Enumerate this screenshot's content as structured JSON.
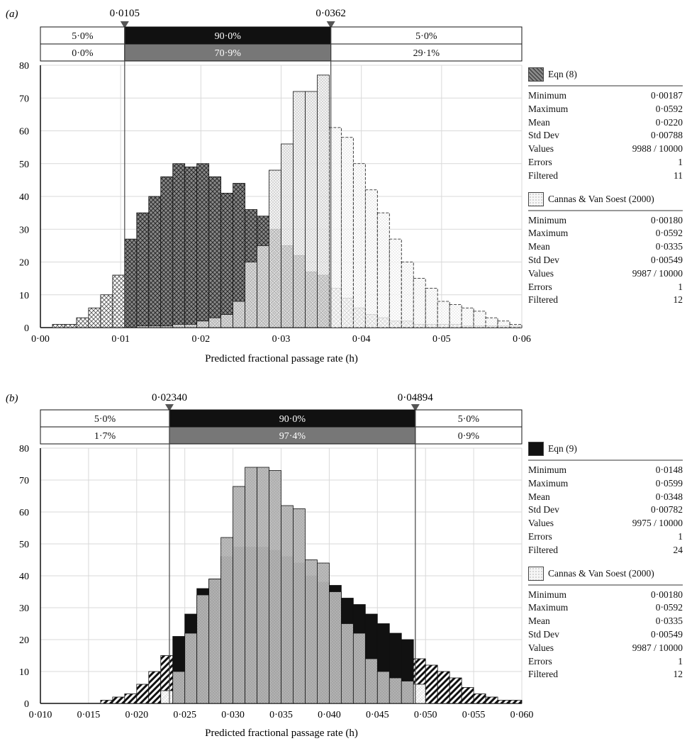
{
  "chart_data": [
    {
      "type": "bar",
      "panel_label": "(a)",
      "xlabel": "Predicted fractional passage rate (h)",
      "xlim": [
        0.0,
        0.06
      ],
      "ylim": [
        0,
        80
      ],
      "x_ticks": [
        "0·00",
        "0·01",
        "0·02",
        "0·03",
        "0·04",
        "0·05",
        "0·06"
      ],
      "y_ticks": [
        "0",
        "10",
        "20",
        "30",
        "40",
        "50",
        "60",
        "70",
        "80"
      ],
      "bin_width": 0.0015,
      "markers": [
        "0·0105",
        "0·0362"
      ],
      "marker_values": [
        0.0105,
        0.0362
      ],
      "band_top": [
        "5·0%",
        "90·0%",
        "5·0%"
      ],
      "band_bottom": [
        "0·0%",
        "70·9%",
        "29·1%"
      ],
      "series": [
        {
          "name": "Eqn (8)",
          "bin_start": [
            0.0015,
            0.003,
            0.0045,
            0.006,
            0.0075,
            0.009,
            0.0105,
            0.012,
            0.0135,
            0.015,
            0.0165,
            0.018,
            0.0195,
            0.021,
            0.0225,
            0.024,
            0.0255,
            0.027,
            0.0285,
            0.03,
            0.0315,
            0.033,
            0.0345,
            0.036,
            0.0375,
            0.039,
            0.0405,
            0.042,
            0.0435,
            0.045,
            0.0465,
            0.048,
            0.0495,
            0.051,
            0.0525,
            0.054,
            0.0555,
            0.057,
            0.0585
          ],
          "values": [
            1,
            1,
            3,
            6,
            10,
            16,
            27,
            35,
            40,
            46,
            50,
            49,
            50,
            46,
            41,
            44,
            36,
            34,
            30,
            25,
            22,
            17,
            16,
            12,
            9,
            6,
            4,
            3,
            2,
            2,
            1,
            1,
            1,
            1,
            0.5,
            0.5,
            0.5,
            0.5,
            0.5
          ]
        },
        {
          "name": "Cannas & Van Soest (2000)",
          "bin_start": [
            0.012,
            0.0135,
            0.015,
            0.0165,
            0.018,
            0.0195,
            0.021,
            0.0225,
            0.024,
            0.0255,
            0.027,
            0.0285,
            0.03,
            0.0315,
            0.033,
            0.0345,
            0.036,
            0.0375,
            0.039,
            0.0405,
            0.042,
            0.0435,
            0.045,
            0.0465,
            0.048,
            0.0495,
            0.051,
            0.0525,
            0.054,
            0.0555,
            0.057,
            0.0585
          ],
          "values": [
            0.5,
            0.5,
            0.5,
            1,
            1,
            2,
            3,
            4,
            8,
            20,
            25,
            48,
            56,
            72,
            72,
            77,
            61,
            58,
            50,
            42,
            35,
            27,
            20,
            15,
            12,
            8,
            7,
            6,
            5,
            3,
            2,
            1
          ]
        }
      ],
      "stats": [
        {
          "name": "Eqn (8)",
          "pattern": "crosshatch",
          "rows": [
            [
              "Minimum",
              "0·00187"
            ],
            [
              "Maximum",
              "0·0592"
            ],
            [
              "Mean",
              "0·0220"
            ],
            [
              "Std Dev",
              "0·00788"
            ],
            [
              "Values",
              "9988 / 10000"
            ],
            [
              "Errors",
              "1"
            ],
            [
              "Filtered",
              "11"
            ]
          ]
        },
        {
          "name": "Cannas & Van Soest (2000)",
          "pattern": "dots",
          "rows": [
            [
              "Minimum",
              "0·00180"
            ],
            [
              "Maximum",
              "0·0592"
            ],
            [
              "Mean",
              "0·0335"
            ],
            [
              "Std Dev",
              "0·00549"
            ],
            [
              "Values",
              "9987 / 10000"
            ],
            [
              "Errors",
              "1"
            ],
            [
              "Filtered",
              "12"
            ]
          ]
        }
      ]
    },
    {
      "type": "bar",
      "panel_label": "(b)",
      "xlabel": "Predicted fractional passage rate (h)",
      "xlim": [
        0.01,
        0.06
      ],
      "ylim": [
        0,
        80
      ],
      "x_ticks": [
        "0·010",
        "0·015",
        "0·020",
        "0·025",
        "0·030",
        "0·035",
        "0·040",
        "0·045",
        "0·050",
        "0·055",
        "0·060"
      ],
      "y_ticks": [
        "0",
        "10",
        "20",
        "30",
        "40",
        "50",
        "60",
        "70",
        "80"
      ],
      "bin_width": 0.00125,
      "markers": [
        "0·02340",
        "0·04894"
      ],
      "marker_values": [
        0.0234,
        0.04894
      ],
      "band_top": [
        "5·0%",
        "90·0%",
        "5·0%"
      ],
      "band_bottom": [
        "1·7%",
        "97·4%",
        "0·9%"
      ],
      "series": [
        {
          "name": "Eqn (9)",
          "bin_start": [
            0.01625,
            0.0175,
            0.01875,
            0.02,
            0.02125,
            0.0225,
            0.02375,
            0.025,
            0.02625,
            0.0275,
            0.02875,
            0.03,
            0.03125,
            0.0325,
            0.03375,
            0.035,
            0.03625,
            0.0375,
            0.03875,
            0.04,
            0.04125,
            0.0425,
            0.04375,
            0.045,
            0.04625,
            0.0475,
            0.04875,
            0.05,
            0.05125,
            0.0525,
            0.05375,
            0.055,
            0.05625,
            0.0575,
            0.05875
          ],
          "values": [
            1,
            2,
            3,
            6,
            10,
            15,
            21,
            28,
            36,
            39,
            46,
            49,
            49,
            49,
            48,
            46,
            44,
            40,
            38,
            37,
            33,
            31,
            28,
            25,
            22,
            20,
            14,
            12,
            10,
            8,
            5,
            3,
            2,
            1,
            1
          ]
        },
        {
          "name": "Cannas & Van Soest (2000)",
          "bin_start": [
            0.0225,
            0.02375,
            0.025,
            0.02625,
            0.0275,
            0.02875,
            0.03,
            0.03125,
            0.0325,
            0.03375,
            0.035,
            0.03625,
            0.0375,
            0.03875,
            0.04,
            0.04125,
            0.0425,
            0.04375,
            0.045,
            0.04625,
            0.0475,
            0.04875
          ],
          "values": [
            4,
            10,
            22,
            34,
            39,
            52,
            68,
            74,
            74,
            73,
            62,
            61,
            45,
            44,
            35,
            25,
            22,
            14,
            10,
            8,
            7,
            6
          ]
        }
      ],
      "stats": [
        {
          "name": "Eqn (9)",
          "pattern": "black",
          "rows": [
            [
              "Minimum",
              "0·0148"
            ],
            [
              "Maximum",
              "0·0599"
            ],
            [
              "Mean",
              "0·0348"
            ],
            [
              "Std Dev",
              "0·00782"
            ],
            [
              "Values",
              "9975 / 10000"
            ],
            [
              "Errors",
              "1"
            ],
            [
              "Filtered",
              "24"
            ]
          ]
        },
        {
          "name": "Cannas & Van Soest (2000)",
          "pattern": "dots",
          "rows": [
            [
              "Minimum",
              "0·00180"
            ],
            [
              "Maximum",
              "0·0592"
            ],
            [
              "Mean",
              "0·0335"
            ],
            [
              "Std Dev",
              "0·00549"
            ],
            [
              "Values",
              "9987 / 10000"
            ],
            [
              "Errors",
              "1"
            ],
            [
              "Filtered",
              "12"
            ]
          ]
        }
      ]
    }
  ]
}
